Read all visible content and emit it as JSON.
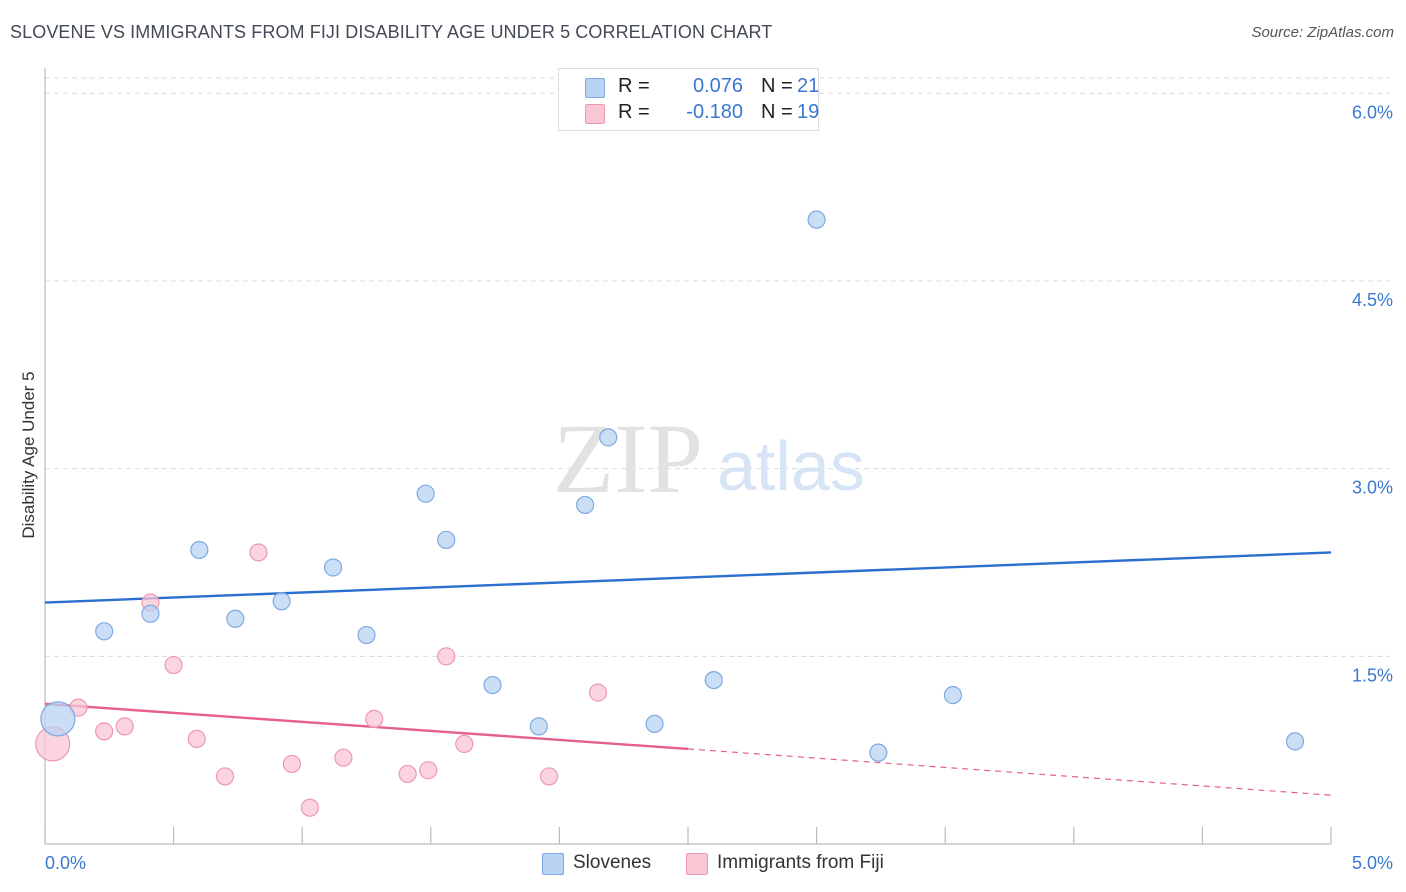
{
  "title": "SLOVENE VS IMMIGRANTS FROM FIJI DISABILITY AGE UNDER 5 CORRELATION CHART",
  "source": "Source: ZipAtlas.com",
  "watermark": {
    "zip": "ZIP",
    "atlas": "atlas"
  },
  "legend": {
    "rows": [
      {
        "r_label": "R =",
        "r_value": "0.076",
        "n_label": "N =",
        "n_value": "21"
      },
      {
        "r_label": "R =",
        "r_value": "-0.180",
        "n_label": "N =",
        "n_value": "19"
      }
    ]
  },
  "bottom_legend": {
    "series1": "Slovenes",
    "series2": "Immigrants from Fiji"
  },
  "colors": {
    "blue_fill": "#b8d3f3",
    "blue_stroke": "#7ea9e0",
    "blue_line": "#2b6fcf",
    "pink_fill": "#f9c6d4",
    "pink_stroke": "#ee98b2",
    "pink_line": "#e5608c",
    "tick_text": "#3a78d0",
    "grid": "#d9d9d9"
  },
  "chart_data": {
    "type": "scatter",
    "title": "SLOVENE VS IMMIGRANTS FROM FIJI DISABILITY AGE UNDER 5 CORRELATION CHART",
    "xlabel": "",
    "ylabel": "Disability Age Under 5",
    "xlim": [
      0,
      5
    ],
    "ylim": [
      0,
      6.25
    ],
    "x_tick_labels": [
      "0.0%",
      "5.0%"
    ],
    "y_ticks": [
      1.5,
      3.0,
      4.5,
      6.0
    ],
    "y_tick_labels": [
      "1.5%",
      "3.0%",
      "4.5%",
      "6.0%"
    ],
    "grid": true,
    "legend_position": "top-center",
    "series": [
      {
        "name": "Slovenes",
        "color": "#b8d3f3",
        "r": 0.076,
        "n": 21,
        "points": [
          [
            0.05,
            1.0,
            "large"
          ],
          [
            0.23,
            1.7,
            "normal"
          ],
          [
            0.41,
            1.84,
            "normal"
          ],
          [
            0.6,
            2.35,
            "normal"
          ],
          [
            0.74,
            1.8,
            "normal"
          ],
          [
            0.92,
            1.94,
            "normal"
          ],
          [
            1.12,
            2.21,
            "normal"
          ],
          [
            1.25,
            1.67,
            "normal"
          ],
          [
            1.48,
            2.8,
            "normal"
          ],
          [
            1.56,
            2.43,
            "normal"
          ],
          [
            1.74,
            1.27,
            "normal"
          ],
          [
            1.92,
            0.94,
            "normal"
          ],
          [
            2.1,
            2.71,
            "normal"
          ],
          [
            2.19,
            3.25,
            "normal"
          ],
          [
            2.37,
            0.96,
            "normal"
          ],
          [
            2.6,
            1.31,
            "normal"
          ],
          [
            2.92,
            5.83,
            "normal"
          ],
          [
            3.0,
            4.99,
            "normal"
          ],
          [
            3.24,
            0.73,
            "normal"
          ],
          [
            3.53,
            1.19,
            "normal"
          ],
          [
            4.86,
            0.82,
            "normal"
          ]
        ],
        "trend": {
          "x": [
            0,
            5
          ],
          "y": [
            1.93,
            2.33
          ],
          "style": "solid"
        }
      },
      {
        "name": "Immigrants from Fiji",
        "color": "#f9c6d4",
        "r": -0.18,
        "n": 19,
        "points": [
          [
            0.03,
            0.8,
            "large"
          ],
          [
            0.13,
            1.09,
            "normal"
          ],
          [
            0.23,
            0.9,
            "normal"
          ],
          [
            0.31,
            0.94,
            "normal"
          ],
          [
            0.41,
            1.93,
            "normal"
          ],
          [
            0.5,
            1.43,
            "normal"
          ],
          [
            0.59,
            0.84,
            "normal"
          ],
          [
            0.7,
            0.54,
            "normal"
          ],
          [
            0.83,
            2.33,
            "normal"
          ],
          [
            0.96,
            0.64,
            "normal"
          ],
          [
            1.03,
            0.29,
            "normal"
          ],
          [
            1.16,
            0.69,
            "normal"
          ],
          [
            1.28,
            1.0,
            "normal"
          ],
          [
            1.41,
            0.56,
            "normal"
          ],
          [
            1.49,
            0.59,
            "normal"
          ],
          [
            1.56,
            1.5,
            "normal"
          ],
          [
            1.63,
            0.8,
            "normal"
          ],
          [
            1.96,
            0.54,
            "normal"
          ],
          [
            2.15,
            1.21,
            "normal"
          ]
        ],
        "trend": {
          "x": [
            0,
            2.5,
            5
          ],
          "y": [
            1.12,
            0.76,
            0.39
          ],
          "style": "solid-then-dashed"
        }
      }
    ]
  }
}
